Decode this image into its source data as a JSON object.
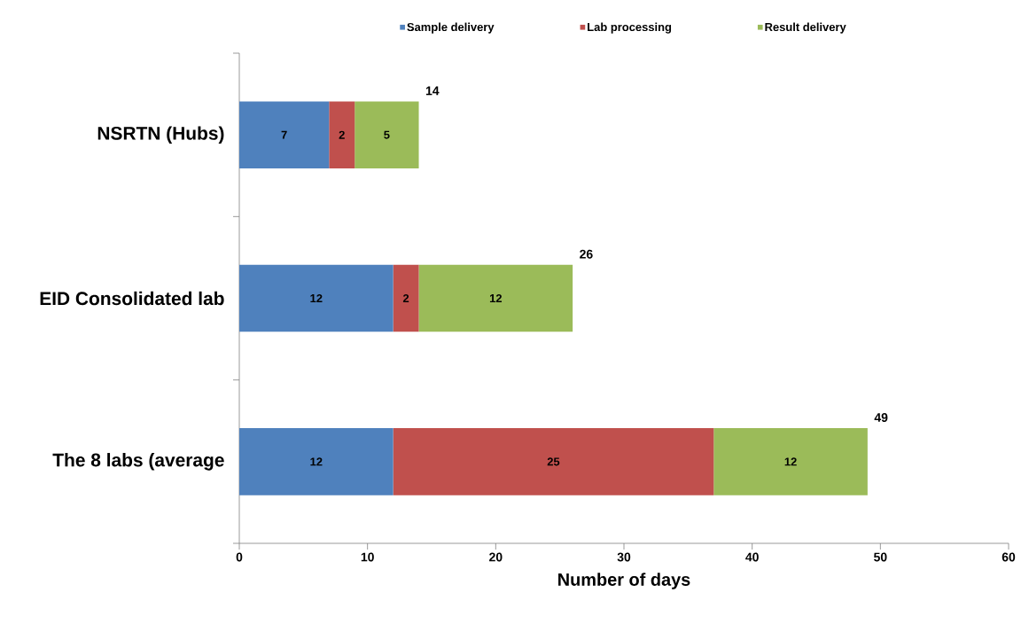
{
  "chart_data": {
    "type": "bar",
    "orientation": "horizontal",
    "stacked": true,
    "categories": [
      "NSRTN (Hubs)",
      "EID Consolidated lab",
      "The 8 labs (average"
    ],
    "series": [
      {
        "name": "Sample delivery",
        "color": "#4f81bd",
        "values": [
          7,
          12,
          12
        ]
      },
      {
        "name": "Lab processing",
        "color": "#c0504d",
        "values": [
          2,
          2,
          25
        ]
      },
      {
        "name": "Result delivery",
        "color": "#9bbb59",
        "values": [
          5,
          12,
          12
        ]
      }
    ],
    "data_labels": true,
    "totals": [
      "14",
      "26",
      "49"
    ],
    "xlabel": "Number of days",
    "xlim": [
      0,
      60
    ],
    "xticks": [
      0,
      10,
      20,
      30,
      40,
      50,
      60
    ],
    "legend": "top"
  }
}
